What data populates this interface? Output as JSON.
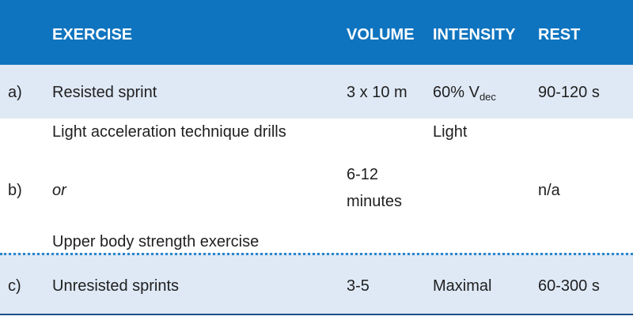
{
  "header": {
    "exercise": "EXERCISE",
    "volume": "VOLUME",
    "intensity": "INTENSITY",
    "rest": "REST"
  },
  "rows": {
    "a": {
      "label": "a)",
      "exercise": "Resisted sprint",
      "volume": "3 x 10 m",
      "intensity_main": "60% V",
      "intensity_sub": "dec",
      "rest": "90-120 s"
    },
    "b": {
      "label": "b)",
      "exercise_1": "Light acceleration technique drills",
      "exercise_or": "or",
      "exercise_2": "Upper body strength exercise",
      "volume_line1": "6-12",
      "volume_line2": "minutes",
      "intensity": "Light",
      "rest": "n/a"
    },
    "c": {
      "label": "c)",
      "exercise": "Unresisted sprints",
      "volume": "3-5",
      "intensity": "Maximal",
      "rest": "60-300 s"
    }
  },
  "colors": {
    "header_bg": "#0f74bf",
    "band_bg": "#dfe9f6",
    "divider": "#2a86cc"
  }
}
